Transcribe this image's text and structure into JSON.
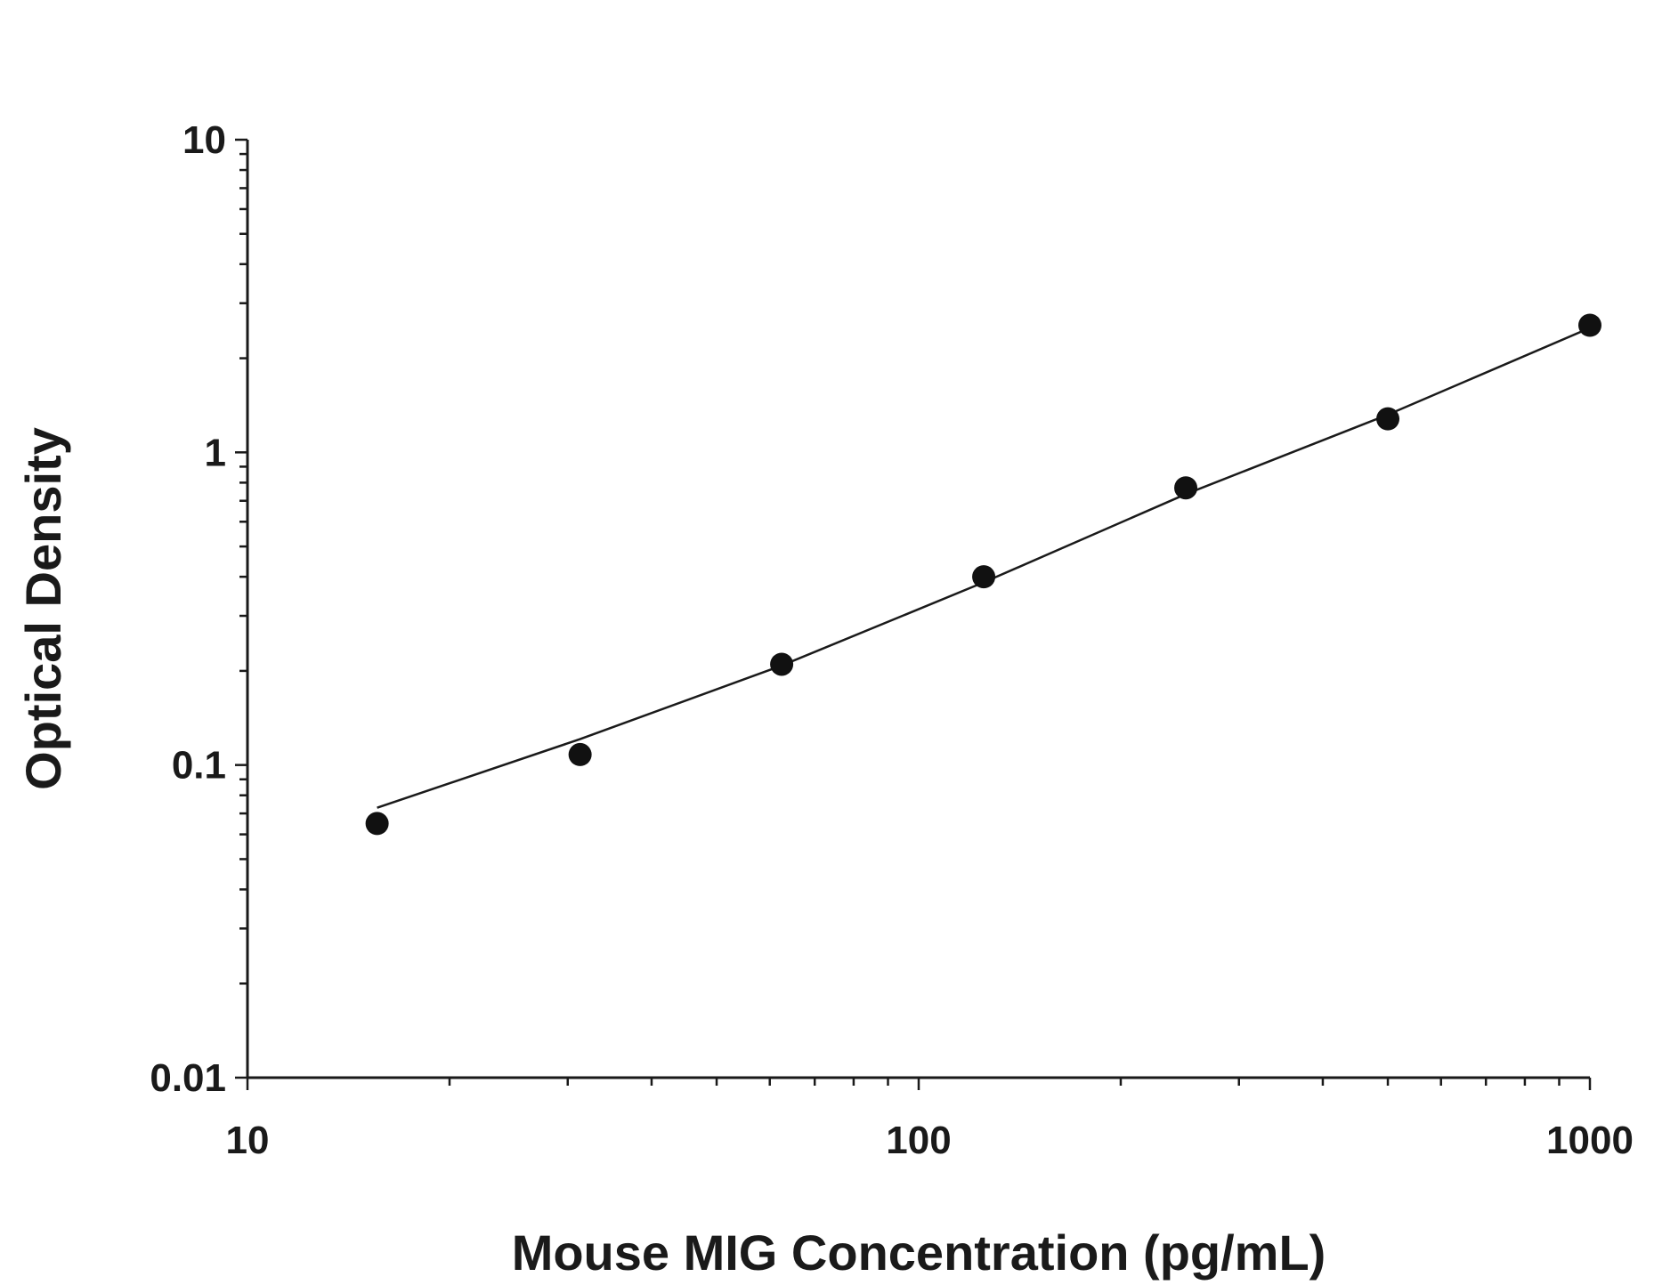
{
  "chart_data": {
    "type": "scatter",
    "xlabel": "Mouse MIG Concentration (pg/mL)",
    "ylabel": "Optical Density",
    "x_scale": "log",
    "y_scale": "log",
    "xlim": [
      10,
      1000
    ],
    "ylim": [
      0.01,
      10
    ],
    "x_ticks": [
      "10",
      "100",
      "1000"
    ],
    "y_ticks": [
      "0.01",
      "0.1",
      "1",
      "10"
    ],
    "grid": false,
    "series": [
      {
        "x": [
          15.6,
          31.3,
          62.5,
          125,
          250,
          500,
          1000
        ],
        "y": [
          0.065,
          0.108,
          0.21,
          0.4,
          0.77,
          1.28,
          2.55
        ]
      }
    ],
    "fit_curve": {
      "x": [
        15.6,
        31.3,
        62.5,
        125,
        250,
        500,
        1000
      ],
      "y": [
        0.073,
        0.121,
        0.208,
        0.384,
        0.735,
        1.32,
        2.5
      ]
    }
  }
}
